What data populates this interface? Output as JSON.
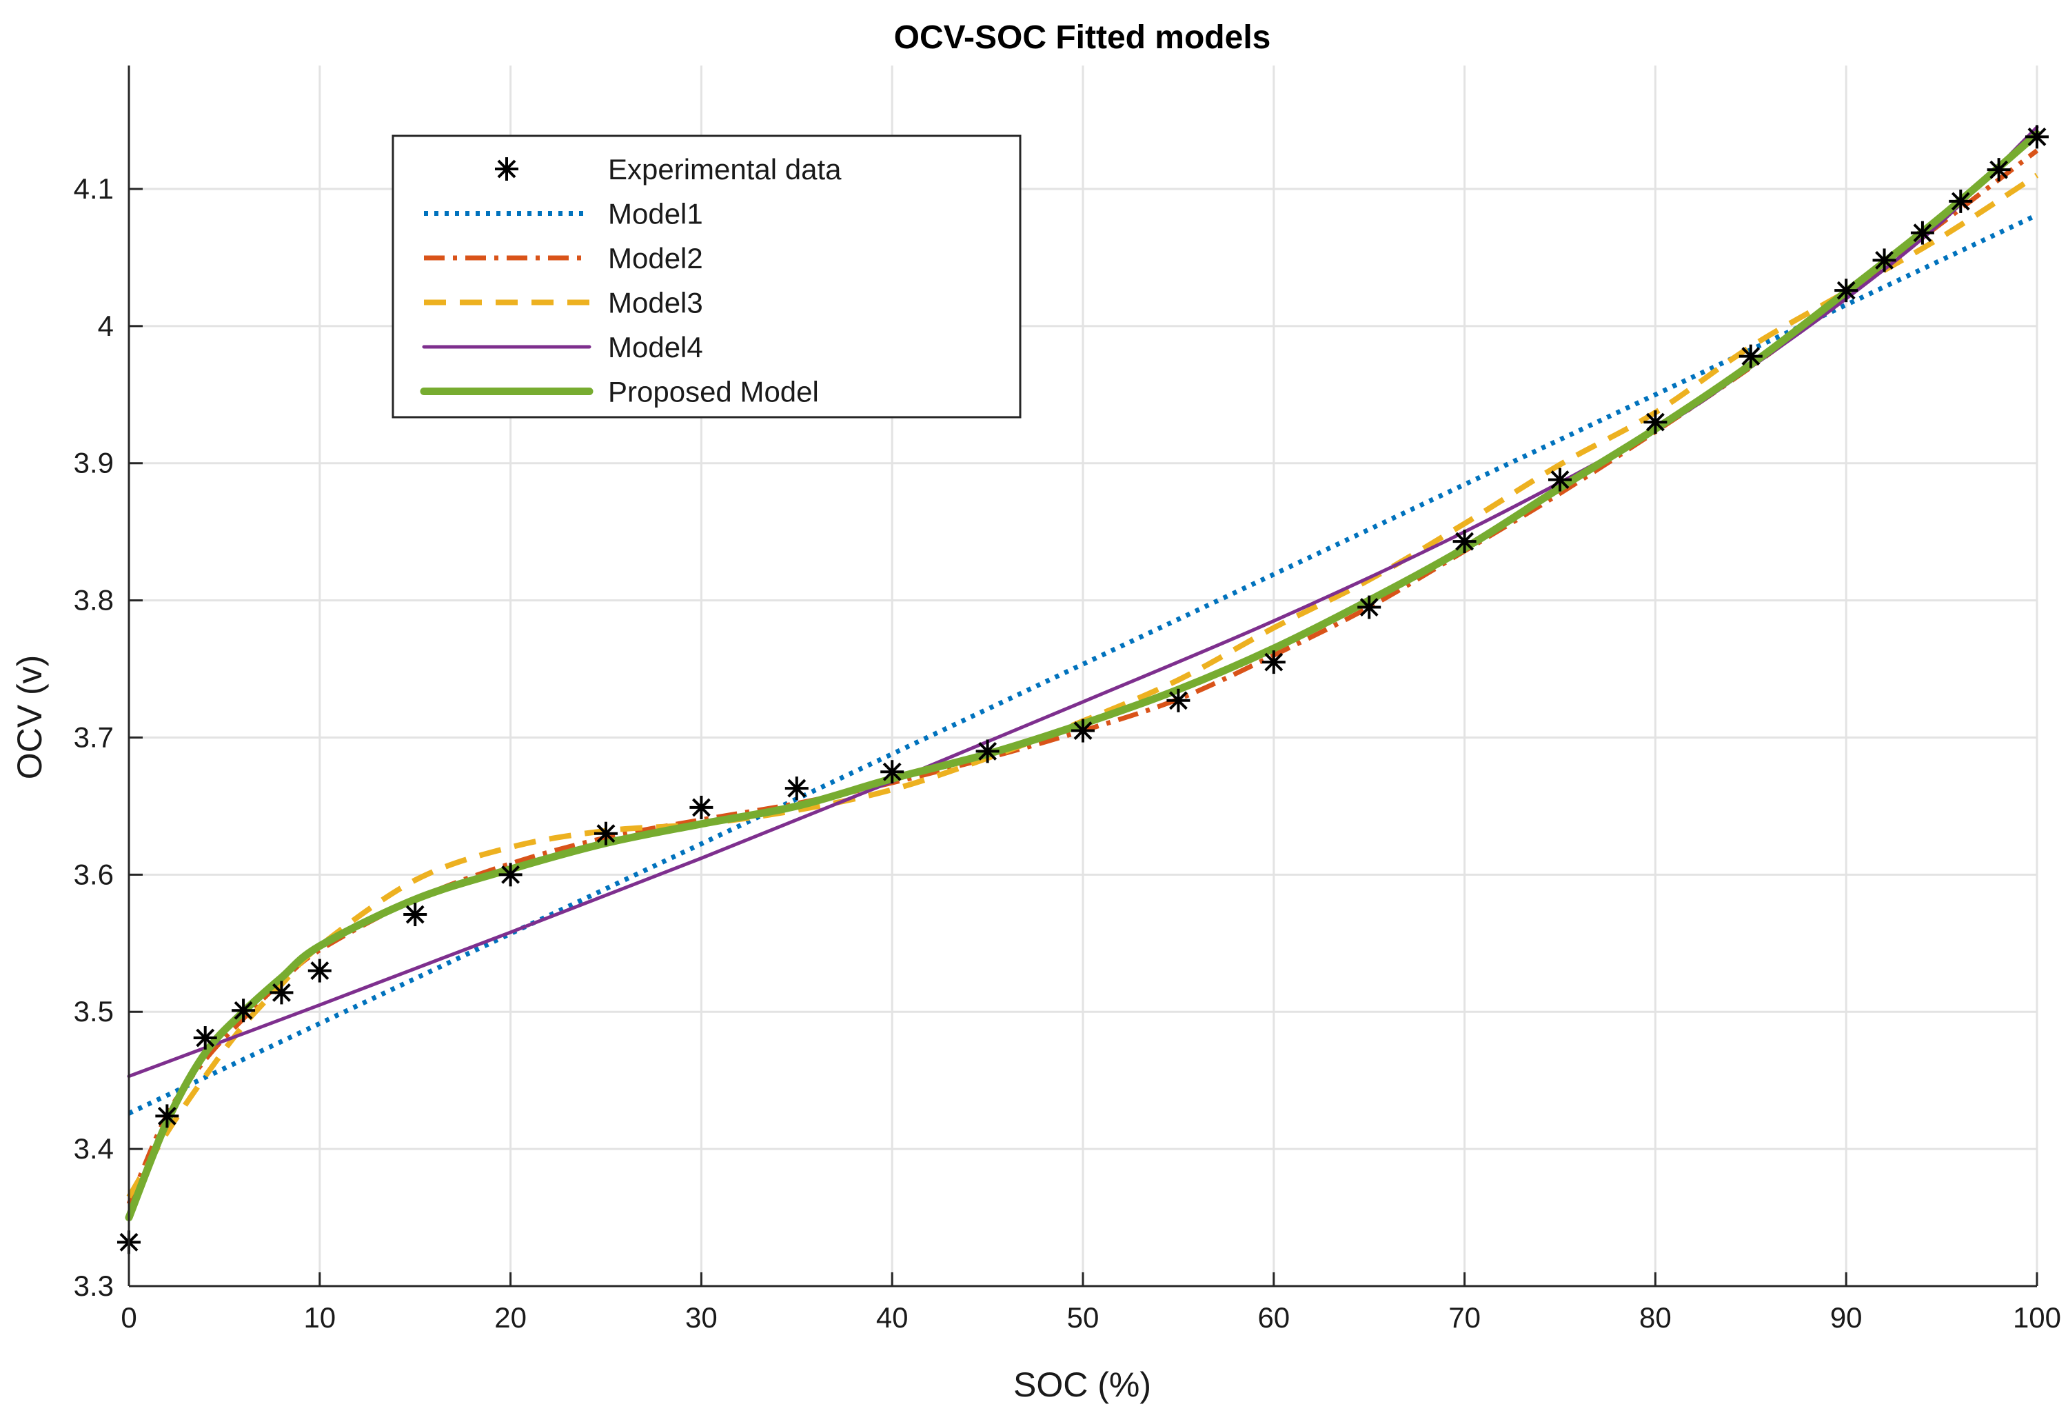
{
  "chart_data": {
    "type": "line",
    "title": "OCV-SOC Fitted models",
    "xlabel": "SOC (%)",
    "ylabel": "OCV (v)",
    "xlim": [
      0,
      100
    ],
    "ylim": [
      3.3,
      4.19
    ],
    "grid": true,
    "x_ticks": [
      0,
      10,
      20,
      30,
      40,
      50,
      60,
      70,
      80,
      90,
      100
    ],
    "x_tick_labels": [
      "0",
      "10",
      "20",
      "30",
      "40",
      "50",
      "60",
      "70",
      "80",
      "90",
      "100"
    ],
    "y_ticks": [
      3.3,
      3.4,
      3.5,
      3.6,
      3.7,
      3.8,
      3.9,
      4.0,
      4.1
    ],
    "y_tick_labels": [
      "3.3",
      "3.4",
      "3.5",
      "3.6",
      "3.7",
      "3.8",
      "3.9",
      "4",
      "4.1"
    ],
    "legend_position": "top-left",
    "experimental": {
      "name": "Experimental data",
      "color": "#000000",
      "x": [
        0,
        2,
        4,
        6,
        8,
        10,
        15,
        20,
        25,
        30,
        35,
        40,
        45,
        50,
        55,
        60,
        65,
        70,
        75,
        80,
        85,
        90,
        92,
        94,
        96,
        98,
        100
      ],
      "y": [
        3.332,
        3.424,
        3.481,
        3.501,
        3.514,
        3.53,
        3.571,
        3.6,
        3.63,
        3.649,
        3.663,
        3.675,
        3.69,
        3.705,
        3.727,
        3.755,
        3.795,
        3.843,
        3.888,
        3.93,
        3.978,
        4.026,
        4.048,
        4.068,
        4.091,
        4.114,
        4.138
      ]
    },
    "series": [
      {
        "name": "Model1",
        "color": "#0072BD",
        "style": "dotted",
        "x": [
          0,
          100
        ],
        "y": [
          3.426,
          4.081
        ]
      },
      {
        "name": "Model2",
        "color": "#D95319",
        "style": "dashdot",
        "x": [
          0,
          2,
          4,
          6,
          8,
          10,
          15,
          20,
          25,
          30,
          35,
          40,
          45,
          50,
          55,
          60,
          65,
          70,
          75,
          80,
          85,
          90,
          95,
          100
        ],
        "y": [
          3.36,
          3.425,
          3.465,
          3.495,
          3.522,
          3.545,
          3.582,
          3.608,
          3.627,
          3.64,
          3.652,
          3.667,
          3.685,
          3.705,
          3.728,
          3.76,
          3.795,
          3.836,
          3.878,
          3.923,
          3.97,
          4.022,
          4.075,
          4.128
        ]
      },
      {
        "name": "Model3",
        "color": "#EDB120",
        "style": "dashed",
        "x": [
          0,
          2,
          4,
          6,
          8,
          10,
          15,
          20,
          25,
          30,
          35,
          40,
          45,
          50,
          55,
          60,
          65,
          70,
          75,
          80,
          85,
          90,
          95,
          100
        ],
        "y": [
          3.365,
          3.412,
          3.453,
          3.49,
          3.52,
          3.548,
          3.596,
          3.62,
          3.632,
          3.637,
          3.647,
          3.662,
          3.685,
          3.712,
          3.742,
          3.78,
          3.815,
          3.856,
          3.899,
          3.937,
          3.985,
          4.025,
          4.065,
          4.11
        ]
      },
      {
        "name": "Model4",
        "color": "#7E2F8E",
        "style": "solid-thin",
        "x": [
          0,
          10,
          20,
          30,
          40,
          50,
          60,
          70,
          80,
          85,
          90,
          95,
          100
        ],
        "y": [
          3.453,
          3.505,
          3.558,
          3.612,
          3.668,
          3.726,
          3.785,
          3.85,
          3.924,
          3.97,
          4.02,
          4.076,
          4.145
        ]
      },
      {
        "name": "Proposed Model",
        "color": "#77AC30",
        "style": "solid-thick",
        "x": [
          0,
          2,
          4,
          6,
          8,
          10,
          15,
          20,
          25,
          30,
          35,
          40,
          45,
          50,
          55,
          60,
          65,
          70,
          75,
          80,
          85,
          90,
          95,
          100
        ],
        "y": [
          3.35,
          3.42,
          3.47,
          3.5,
          3.525,
          3.548,
          3.582,
          3.604,
          3.623,
          3.637,
          3.65,
          3.67,
          3.688,
          3.71,
          3.735,
          3.765,
          3.8,
          3.838,
          3.882,
          3.925,
          3.972,
          4.025,
          4.08,
          4.14
        ]
      }
    ]
  }
}
